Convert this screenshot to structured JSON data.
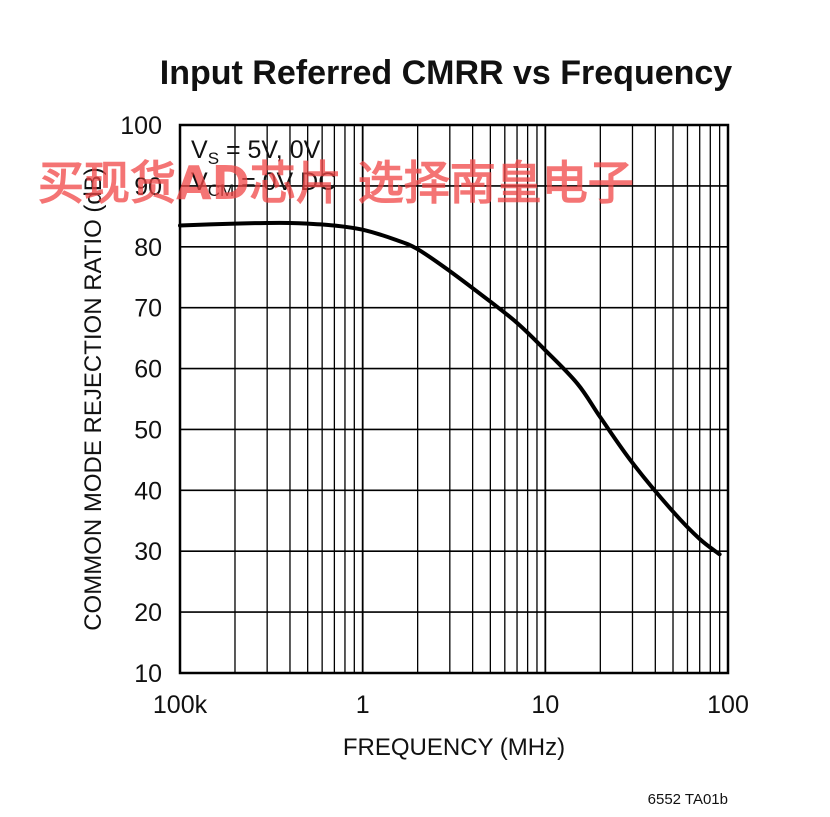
{
  "chart_data": {
    "type": "line",
    "title": "Input Referred CMRR vs Frequency",
    "xlabel": "FREQUENCY (MHz)",
    "ylabel": "COMMON MODE REJECTION RATIO (dB)",
    "x_scale": "log",
    "xlim": [
      0.1,
      100
    ],
    "ylim": [
      10,
      100
    ],
    "x_ticks": [
      {
        "value": 0.1,
        "label": "100k"
      },
      {
        "value": 1,
        "label": "1"
      },
      {
        "value": 10,
        "label": "10"
      },
      {
        "value": 100,
        "label": "100"
      }
    ],
    "y_ticks": [
      10,
      20,
      30,
      40,
      50,
      60,
      70,
      80,
      90,
      100
    ],
    "grid": true,
    "annotation": {
      "line1_main": "V",
      "line1_sub": "S",
      "line1_rest": " = 5V, 0V",
      "line2_main": "V",
      "line2_sub": "CM",
      "line2_rest": " = 0V DC"
    },
    "series": [
      {
        "x": [
          0.1,
          0.2,
          0.3,
          0.4,
          0.5,
          0.7,
          1,
          1.5,
          2,
          3,
          5,
          7,
          10,
          15,
          20,
          30,
          50,
          70,
          90
        ],
        "y": [
          83.5,
          83.8,
          83.9,
          83.9,
          83.8,
          83.5,
          82.8,
          81.2,
          79.6,
          76.0,
          71.0,
          67.5,
          63.0,
          57.5,
          52.0,
          44.5,
          36.5,
          32.0,
          29.5
        ]
      }
    ],
    "color": "#000000"
  },
  "figure_code": "6552 TA01b",
  "watermark": "买现货AD芯片 选择南皇电子"
}
